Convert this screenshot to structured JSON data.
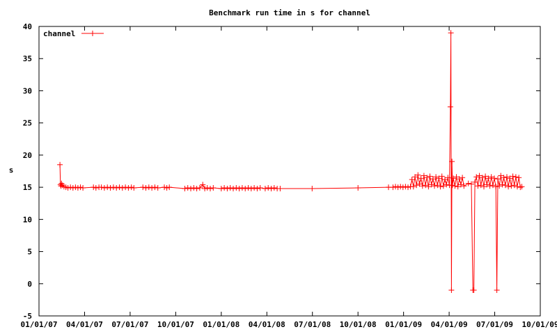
{
  "chart_data": {
    "type": "line",
    "title": "Benchmark run time in s for channel",
    "xlabel": "",
    "ylabel": "s",
    "xlim": [
      "2007-01-01",
      "2009-10-01"
    ],
    "ylim": [
      -5,
      40
    ],
    "x_ticks": [
      "01/01/07",
      "04/01/07",
      "07/01/07",
      "10/01/07",
      "01/01/08",
      "04/01/08",
      "07/01/08",
      "10/01/08",
      "01/01/09",
      "04/01/09",
      "07/01/09",
      "10/01/09"
    ],
    "y_ticks": [
      -5,
      0,
      5,
      10,
      15,
      20,
      25,
      30,
      35,
      40
    ],
    "legend_position": "top-left",
    "grid": false,
    "series_color": "#ff0000",
    "series": [
      {
        "name": "channel",
        "points": [
          [
            "2007-02-12",
            18.5
          ],
          [
            "2007-02-13",
            15.4
          ],
          [
            "2007-02-14",
            15.2
          ],
          [
            "2007-02-15",
            15.6
          ],
          [
            "2007-02-17",
            15.3
          ],
          [
            "2007-02-20",
            15.1
          ],
          [
            "2007-02-24",
            15.0
          ],
          [
            "2007-02-28",
            14.9
          ],
          [
            "2007-03-05",
            15.0
          ],
          [
            "2007-03-10",
            14.9
          ],
          [
            "2007-03-15",
            15.0
          ],
          [
            "2007-03-20",
            14.9
          ],
          [
            "2007-03-25",
            15.0
          ],
          [
            "2007-03-30",
            14.9
          ],
          [
            "2007-04-20",
            15.0
          ],
          [
            "2007-04-25",
            14.9
          ],
          [
            "2007-05-01",
            15.0
          ],
          [
            "2007-05-06",
            15.0
          ],
          [
            "2007-05-12",
            14.9
          ],
          [
            "2007-05-18",
            15.0
          ],
          [
            "2007-05-24",
            14.9
          ],
          [
            "2007-05-30",
            15.0
          ],
          [
            "2007-06-05",
            14.9
          ],
          [
            "2007-06-11",
            15.0
          ],
          [
            "2007-06-17",
            14.9
          ],
          [
            "2007-06-23",
            15.0
          ],
          [
            "2007-06-29",
            14.9
          ],
          [
            "2007-07-05",
            15.0
          ],
          [
            "2007-07-10",
            14.9
          ],
          [
            "2007-07-28",
            15.0
          ],
          [
            "2007-08-03",
            14.9
          ],
          [
            "2007-08-09",
            15.0
          ],
          [
            "2007-08-15",
            14.9
          ],
          [
            "2007-08-21",
            15.0
          ],
          [
            "2007-08-27",
            14.9
          ],
          [
            "2007-09-09",
            15.0
          ],
          [
            "2007-09-14",
            14.9
          ],
          [
            "2007-09-19",
            15.0
          ],
          [
            "2007-10-20",
            14.8
          ],
          [
            "2007-10-26",
            14.9
          ],
          [
            "2007-11-01",
            14.8
          ],
          [
            "2007-11-07",
            14.9
          ],
          [
            "2007-11-13",
            14.8
          ],
          [
            "2007-11-19",
            14.9
          ],
          [
            "2007-11-25",
            15.4
          ],
          [
            "2007-11-29",
            14.8
          ],
          [
            "2007-12-04",
            14.9
          ],
          [
            "2007-12-10",
            14.8
          ],
          [
            "2007-12-16",
            14.9
          ],
          [
            "2008-01-01",
            14.8
          ],
          [
            "2008-01-07",
            14.9
          ],
          [
            "2008-01-13",
            14.8
          ],
          [
            "2008-01-19",
            14.9
          ],
          [
            "2008-01-25",
            14.8
          ],
          [
            "2008-01-31",
            14.9
          ],
          [
            "2008-02-06",
            14.8
          ],
          [
            "2008-02-12",
            14.9
          ],
          [
            "2008-02-18",
            14.8
          ],
          [
            "2008-02-24",
            14.9
          ],
          [
            "2008-03-01",
            14.8
          ],
          [
            "2008-03-07",
            14.9
          ],
          [
            "2008-03-13",
            14.8
          ],
          [
            "2008-03-19",
            14.9
          ],
          [
            "2008-03-29",
            14.8
          ],
          [
            "2008-04-04",
            14.9
          ],
          [
            "2008-04-10",
            14.8
          ],
          [
            "2008-04-16",
            14.9
          ],
          [
            "2008-04-22",
            14.8
          ],
          [
            "2008-04-28",
            14.8
          ],
          [
            "2008-07-01",
            14.8
          ],
          [
            "2008-10-01",
            14.9
          ],
          [
            "2008-12-01",
            15.0
          ],
          [
            "2008-12-10",
            15.0
          ],
          [
            "2008-12-15",
            15.1
          ],
          [
            "2008-12-20",
            15.0
          ],
          [
            "2008-12-25",
            15.1
          ],
          [
            "2008-12-30",
            15.0
          ],
          [
            "2009-01-04",
            15.1
          ],
          [
            "2009-01-09",
            15.0
          ],
          [
            "2009-01-14",
            15.1
          ],
          [
            "2009-01-17",
            16.2
          ],
          [
            "2009-01-20",
            15.1
          ],
          [
            "2009-01-23",
            16.6
          ],
          [
            "2009-01-26",
            15.3
          ],
          [
            "2009-01-29",
            16.9
          ],
          [
            "2009-02-01",
            15.5
          ],
          [
            "2009-02-04",
            16.4
          ],
          [
            "2009-02-07",
            15.2
          ],
          [
            "2009-02-10",
            16.8
          ],
          [
            "2009-02-13",
            15.3
          ],
          [
            "2009-02-16",
            16.5
          ],
          [
            "2009-02-19",
            15.1
          ],
          [
            "2009-02-22",
            16.7
          ],
          [
            "2009-02-25",
            15.4
          ],
          [
            "2009-02-28",
            16.3
          ],
          [
            "2009-03-03",
            15.2
          ],
          [
            "2009-03-06",
            16.6
          ],
          [
            "2009-03-09",
            15.3
          ],
          [
            "2009-03-12",
            16.4
          ],
          [
            "2009-03-15",
            15.1
          ],
          [
            "2009-03-18",
            16.7
          ],
          [
            "2009-03-21",
            15.2
          ],
          [
            "2009-03-24",
            16.2
          ],
          [
            "2009-03-27",
            15.4
          ],
          [
            "2009-03-30",
            16.5
          ],
          [
            "2009-04-02",
            15.3
          ],
          [
            "2009-04-04",
            27.5
          ],
          [
            "2009-04-05",
            39.0
          ],
          [
            "2009-04-06",
            -1.0
          ],
          [
            "2009-04-07",
            19.0
          ],
          [
            "2009-04-08",
            15.3
          ],
          [
            "2009-04-10",
            16.4
          ],
          [
            "2009-04-13",
            15.2
          ],
          [
            "2009-04-16",
            16.6
          ],
          [
            "2009-04-19",
            15.1
          ],
          [
            "2009-04-22",
            16.3
          ],
          [
            "2009-04-25",
            15.4
          ],
          [
            "2009-04-28",
            16.5
          ],
          [
            "2009-05-01",
            15.2
          ],
          [
            "2009-05-10",
            15.6
          ],
          [
            "2009-05-16",
            15.5
          ],
          [
            "2009-05-19",
            -1.0
          ],
          [
            "2009-05-21",
            -1.0
          ],
          [
            "2009-05-23",
            15.8
          ],
          [
            "2009-05-26",
            16.6
          ],
          [
            "2009-05-29",
            15.2
          ],
          [
            "2009-06-01",
            16.8
          ],
          [
            "2009-06-04",
            15.3
          ],
          [
            "2009-06-07",
            16.5
          ],
          [
            "2009-06-10",
            15.1
          ],
          [
            "2009-06-13",
            16.7
          ],
          [
            "2009-06-16",
            15.4
          ],
          [
            "2009-06-19",
            16.4
          ],
          [
            "2009-06-22",
            15.2
          ],
          [
            "2009-06-25",
            16.6
          ],
          [
            "2009-06-28",
            15.3
          ],
          [
            "2009-07-01",
            16.4
          ],
          [
            "2009-07-04",
            15.1
          ],
          [
            "2009-07-06",
            -1.0
          ],
          [
            "2009-07-08",
            16.3
          ],
          [
            "2009-07-11",
            15.2
          ],
          [
            "2009-07-14",
            16.8
          ],
          [
            "2009-07-17",
            15.4
          ],
          [
            "2009-07-20",
            16.5
          ],
          [
            "2009-07-23",
            15.3
          ],
          [
            "2009-07-26",
            16.6
          ],
          [
            "2009-07-29",
            15.1
          ],
          [
            "2009-08-01",
            16.4
          ],
          [
            "2009-08-04",
            15.2
          ],
          [
            "2009-08-07",
            16.7
          ],
          [
            "2009-08-10",
            15.3
          ],
          [
            "2009-08-13",
            16.6
          ],
          [
            "2009-08-16",
            15.1
          ],
          [
            "2009-08-19",
            16.5
          ],
          [
            "2009-08-22",
            15.0
          ],
          [
            "2009-08-25",
            15.1
          ]
        ]
      }
    ]
  }
}
